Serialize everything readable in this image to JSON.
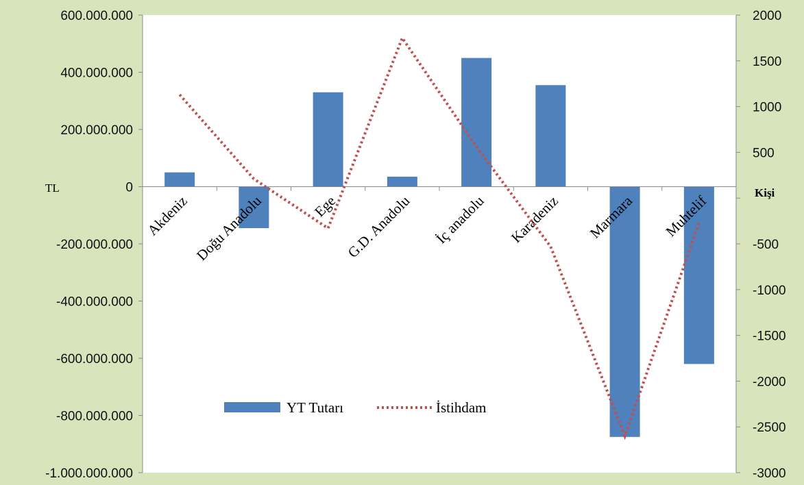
{
  "chart_data": {
    "type": "bar",
    "categories": [
      "Akdeniz",
      "Doğu Anadolu",
      "Ege",
      "G.D. Anadolu",
      "İç anadolu",
      "Karadeniz",
      "Marmara",
      "Muhtelif"
    ],
    "series": [
      {
        "name": "YT Tutarı",
        "type": "bar",
        "axis": "left",
        "color": "#4f81bd",
        "values": [
          50000000,
          -145000000,
          330000000,
          35000000,
          450000000,
          355000000,
          -875000000,
          -620000000
        ]
      },
      {
        "name": "İstihdam",
        "type": "line",
        "axis": "right",
        "style": "dotted",
        "color": "#c0504d",
        "values": [
          1130,
          210,
          -330,
          1750,
          560,
          -530,
          -2600,
          -270
        ]
      }
    ],
    "left_axis": {
      "unit": "TL",
      "range": [
        -1000000000,
        600000000
      ],
      "ticks": [
        600000000,
        400000000,
        200000000,
        0,
        -200000000,
        -400000000,
        -600000000,
        -800000000,
        -1000000000
      ],
      "tick_labels": [
        "600.000.000",
        "400.000.000",
        "200.000.000",
        "0",
        "-200.000.000",
        "-400.000.000",
        "-600.000.000",
        "-800.000.000",
        "-1.000.000.000"
      ]
    },
    "right_axis": {
      "unit": "Kişi",
      "range": [
        -3000,
        2000
      ],
      "ticks": [
        2000,
        1500,
        1000,
        500,
        0,
        -500,
        -1000,
        -1500,
        -2000,
        -2500,
        -3000
      ],
      "tick_labels": [
        "2000",
        "1500",
        "1000",
        "500",
        "",
        "-500",
        "-1000",
        "-1500",
        "-2000",
        "-2500",
        "-3000"
      ]
    },
    "grid": false,
    "legend": {
      "position": "bottom-left",
      "entries": [
        "YT Tutarı",
        "İstihdam"
      ]
    },
    "colors": {
      "background": "#d8e4bc",
      "plot": "#ffffff",
      "bar": "#4f81bd",
      "line": "#c0504d",
      "axis": "#8a8a8a"
    }
  }
}
